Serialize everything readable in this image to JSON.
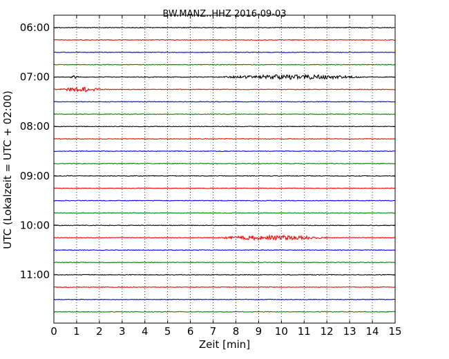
{
  "chart_data": {
    "type": "line",
    "title": "BW.MANZ..HHZ 2016-09-03",
    "xlabel": "Zeit  [min]",
    "ylabel": "UTC (Lokalzeit = UTC + 02:00)",
    "xlim": [
      0,
      15
    ],
    "xticks": [
      "0",
      "1",
      "2",
      "3",
      "4",
      "5",
      "6",
      "7",
      "8",
      "9",
      "10",
      "11",
      "12",
      "13",
      "14",
      "15"
    ],
    "yticks": [
      "06:00",
      "07:00",
      "08:00",
      "09:00",
      "10:00",
      "11:00"
    ],
    "grid": "vertical dotted at each minute",
    "row_interval_minutes": 15,
    "trace_colors": [
      "#000000",
      "#ff0000",
      "#0000ff",
      "#008000"
    ],
    "series": [
      {
        "start": "06:00",
        "events": []
      },
      {
        "start": "06:15",
        "events": []
      },
      {
        "start": "06:30",
        "events": []
      },
      {
        "start": "06:45",
        "events": []
      },
      {
        "start": "07:00",
        "events": [
          {
            "from": 0.7,
            "to": 1.1,
            "amp": 2
          },
          {
            "from": 7.2,
            "to": 13.8,
            "amp": 3
          }
        ]
      },
      {
        "start": "07:15",
        "events": [
          {
            "from": 0.2,
            "to": 2.2,
            "amp": 3
          }
        ]
      },
      {
        "start": "07:30",
        "events": []
      },
      {
        "start": "07:45",
        "events": []
      },
      {
        "start": "08:00",
        "events": []
      },
      {
        "start": "08:15",
        "events": []
      },
      {
        "start": "08:30",
        "events": []
      },
      {
        "start": "08:45",
        "events": []
      },
      {
        "start": "09:00",
        "events": []
      },
      {
        "start": "09:15",
        "events": []
      },
      {
        "start": "09:30",
        "events": []
      },
      {
        "start": "09:45",
        "events": []
      },
      {
        "start": "10:00",
        "events": []
      },
      {
        "start": "10:15",
        "events": [
          {
            "from": 7.0,
            "to": 12.2,
            "amp": 3
          }
        ]
      },
      {
        "start": "10:30",
        "events": []
      },
      {
        "start": "10:45",
        "events": []
      },
      {
        "start": "11:00",
        "events": []
      },
      {
        "start": "11:15",
        "events": []
      },
      {
        "start": "11:30",
        "events": []
      },
      {
        "start": "11:45",
        "events": []
      }
    ]
  }
}
